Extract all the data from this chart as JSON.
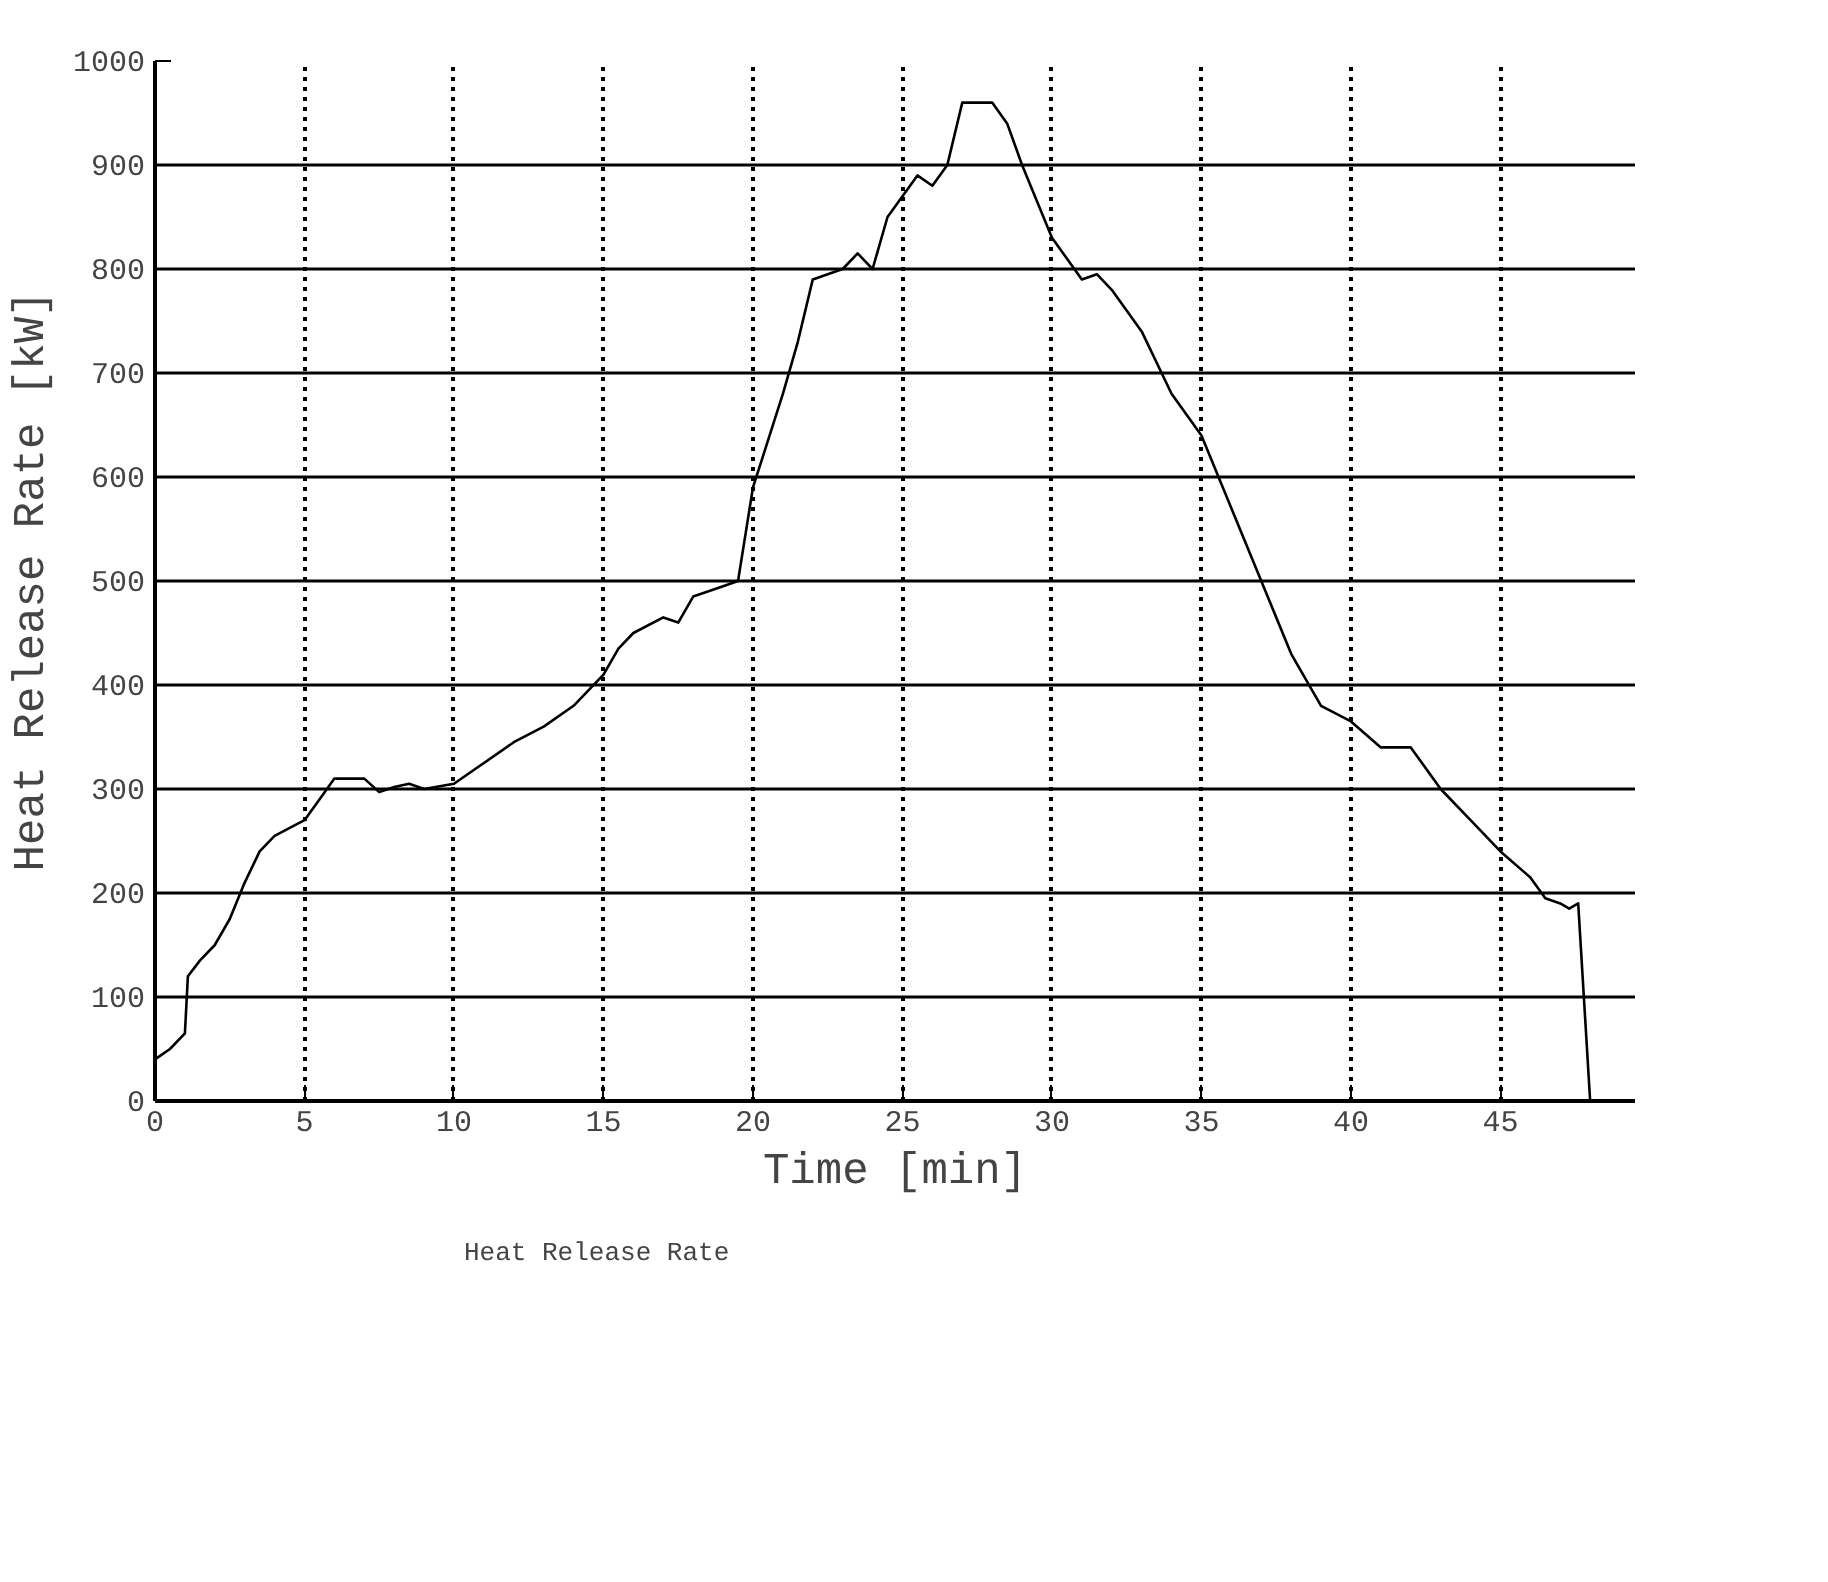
{
  "chart_data": {
    "type": "line",
    "xlabel": "Time [min]",
    "ylabel": "Heat Release Rate [kW]",
    "xlim": [
      0,
      49.5
    ],
    "ylim": [
      0,
      1000
    ],
    "xticks": [
      0,
      5,
      10,
      15,
      20,
      25,
      30,
      35,
      40,
      45
    ],
    "yticks": [
      0,
      100,
      200,
      300,
      400,
      500,
      600,
      700,
      800,
      900,
      1000
    ],
    "grid": true,
    "legend": "bottom left",
    "line_style": "solid",
    "series": [
      {
        "name": "Heat Release Rate",
        "color": "#000000",
        "x": [
          0,
          0.5,
          1,
          1.1,
          1.5,
          2,
          2.5,
          3,
          3.5,
          4,
          5,
          5.5,
          6,
          7,
          7.5,
          8,
          8.5,
          9,
          10,
          11,
          12,
          13,
          14,
          15,
          15.5,
          16,
          17,
          17.5,
          18,
          19,
          19.5,
          20,
          21,
          21.5,
          22,
          23,
          23.5,
          24,
          24.5,
          25,
          25.5,
          26,
          26.5,
          27,
          28,
          28.5,
          29,
          30,
          31,
          31.5,
          32,
          33,
          34,
          35,
          36,
          37,
          38,
          39,
          40,
          41,
          42,
          43,
          44,
          45,
          46,
          46.5,
          47,
          47.3,
          47.6,
          48
        ],
        "values": [
          40,
          50,
          65,
          120,
          135,
          150,
          175,
          210,
          240,
          255,
          270,
          290,
          310,
          310,
          297,
          302,
          305,
          300,
          305,
          325,
          345,
          360,
          380,
          410,
          435,
          450,
          465,
          460,
          485,
          495,
          500,
          590,
          680,
          730,
          790,
          800,
          815,
          800,
          850,
          870,
          890,
          880,
          900,
          960,
          960,
          940,
          900,
          830,
          790,
          795,
          780,
          740,
          680,
          640,
          570,
          500,
          430,
          380,
          365,
          340,
          340,
          300,
          270,
          240,
          215,
          195,
          190,
          185,
          190,
          0
        ]
      }
    ]
  }
}
